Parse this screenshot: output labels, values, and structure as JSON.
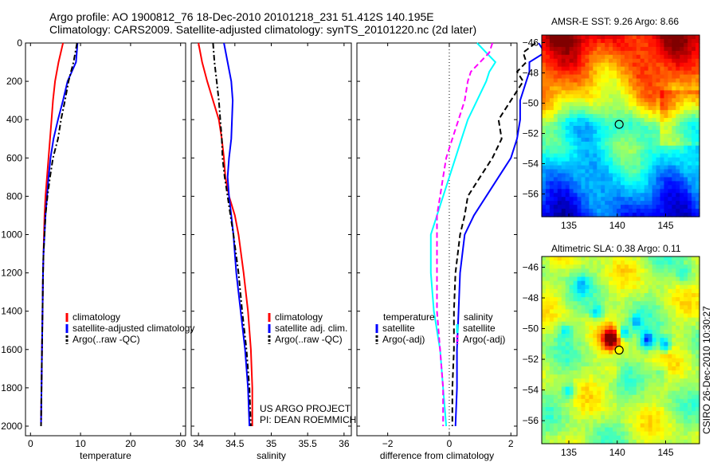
{
  "header": {
    "line1": "Argo profile: AO 1900812_76 18-Dec-2010 20101218_231 51.412S 140.195E",
    "line2": "Climatology: CARS2009. Satellite-adjusted climatology: synTS_20101220.nc (2d later)"
  },
  "credit": {
    "line1": "US ARGO PROJECT",
    "line2": "PI: DEAN ROEMMICH"
  },
  "timestamp": "CSIRO 26-Dec-2010 10:30:27",
  "colors": {
    "red": "#ff0000",
    "blue": "#0000ff",
    "black": "#000000",
    "cyan": "#00ffff",
    "magenta": "#ff00ff"
  },
  "chart_data": [
    {
      "type": "line",
      "xlabel": "temperature",
      "ylabel": "",
      "xlim": [
        -1,
        31
      ],
      "ylim": [
        2050,
        0
      ],
      "xticks": [
        0,
        10,
        20,
        30
      ],
      "yticks": [
        0,
        200,
        400,
        600,
        800,
        1000,
        1200,
        1400,
        1600,
        1800,
        2000
      ],
      "y": [
        0,
        100,
        200,
        300,
        400,
        500,
        600,
        700,
        800,
        900,
        1000,
        1100,
        1200,
        1400,
        1600,
        1800,
        2000
      ],
      "series": [
        {
          "name": "climatology",
          "color": "red",
          "style": "solid",
          "values": [
            6.5,
            5.6,
            4.9,
            4.5,
            4.2,
            3.9,
            3.6,
            3.3,
            3.0,
            2.8,
            2.7,
            2.6,
            2.5,
            2.4,
            2.3,
            2.2,
            2.1
          ]
        },
        {
          "name": "satellite-adjusted climatology",
          "color": "blue",
          "style": "solid",
          "values": [
            9.4,
            9.1,
            7.4,
            6.5,
            5.5,
            4.6,
            4.0,
            3.6,
            3.3,
            3.0,
            2.8,
            2.6,
            2.5,
            2.4,
            2.3,
            2.2,
            2.1
          ]
        },
        {
          "name": "Argo(..raw -QC)",
          "color": "black",
          "style": "dashdot",
          "values": [
            9.3,
            8.6,
            7.6,
            6.9,
            6.1,
            5.5,
            4.5,
            3.9,
            3.4,
            3.0,
            2.8,
            2.6,
            2.5,
            2.4,
            2.3,
            2.2,
            2.1
          ]
        }
      ],
      "legend": [
        "climatology",
        "satellite-adjusted climatology",
        "Argo(..raw -QC)"
      ]
    },
    {
      "type": "line",
      "xlabel": "salinity",
      "ylabel": "",
      "xlim": [
        33.9,
        36.1
      ],
      "ylim": [
        2050,
        0
      ],
      "xticks": [
        34,
        34.5,
        35,
        35.5,
        36
      ],
      "y": [
        0,
        100,
        200,
        300,
        400,
        500,
        600,
        700,
        800,
        900,
        1000,
        1200,
        1400,
        1600,
        1800,
        2000
      ],
      "series": [
        {
          "name": "climatology",
          "color": "red",
          "style": "solid",
          "values": [
            34.0,
            34.05,
            34.12,
            34.2,
            34.28,
            34.32,
            34.35,
            34.37,
            34.42,
            34.5,
            34.55,
            34.62,
            34.68,
            34.72,
            34.74,
            34.74
          ]
        },
        {
          "name": "satellite adj. clim.",
          "color": "blue",
          "style": "solid",
          "values": [
            34.35,
            34.4,
            34.45,
            34.47,
            34.46,
            34.45,
            34.42,
            34.4,
            34.42,
            34.45,
            34.48,
            34.52,
            34.58,
            34.64,
            34.68,
            34.7
          ]
        },
        {
          "name": "Argo(..raw -QC)",
          "color": "black",
          "style": "dashdot",
          "values": [
            34.2,
            34.22,
            34.25,
            34.28,
            34.3,
            34.32,
            34.33,
            34.36,
            34.4,
            34.44,
            34.48,
            34.55,
            34.6,
            34.66,
            34.7,
            34.72
          ]
        }
      ],
      "legend": [
        "climatology",
        "satellite adj. clim.",
        "Argo(..raw -QC)"
      ]
    },
    {
      "type": "line",
      "xlabel": "difference from climatology",
      "ylabel": "",
      "xlim": [
        -3,
        2.2
      ],
      "ylim": [
        2050,
        0
      ],
      "xticks": [
        -2,
        0,
        2
      ],
      "y": [
        0,
        50,
        100,
        150,
        200,
        300,
        400,
        500,
        600,
        700,
        800,
        900,
        1000,
        1200,
        1400,
        1600,
        1800,
        2000
      ],
      "series": [
        {
          "name": "temperature satellite",
          "color": "blue",
          "style": "solid",
          "values": [
            2.9,
            3.1,
            2.6,
            2.6,
            2.5,
            2.3,
            2.3,
            2.2,
            2.0,
            1.6,
            1.2,
            0.8,
            0.5,
            0.35,
            0.3,
            0.25,
            0.25,
            0.2
          ]
        },
        {
          "name": "temperature Argo(-adj)",
          "color": "black",
          "style": "dashed",
          "values": [
            2.8,
            2.4,
            2.5,
            2.2,
            2.4,
            2.0,
            1.6,
            1.7,
            1.4,
            1.0,
            0.6,
            0.5,
            0.35,
            0.2,
            0.15,
            0.15,
            0.1,
            0.1
          ]
        },
        {
          "name": "salinity satellite",
          "color": "cyan",
          "style": "solid",
          "values": [
            0.9,
            1.2,
            1.5,
            1.3,
            1.2,
            0.9,
            0.6,
            0.4,
            0.2,
            0.0,
            -0.2,
            -0.4,
            -0.6,
            -0.6,
            -0.5,
            -0.3,
            -0.2,
            -0.1
          ]
        },
        {
          "name": "salinity Argo(-adj)",
          "color": "magenta",
          "style": "dashed",
          "values": [
            1.4,
            1.3,
            1.0,
            0.7,
            0.6,
            0.5,
            0.3,
            0.1,
            -0.1,
            -0.2,
            -0.3,
            -0.4,
            -0.4,
            -0.4,
            -0.4,
            -0.3,
            -0.2,
            -0.2
          ]
        }
      ],
      "legend_temperature": {
        "title": "temperature",
        "items": [
          "satellite",
          "Argo(-adj)"
        ]
      },
      "legend_salinity": {
        "title": "salinity",
        "items": [
          "satellite",
          "Argo(-adj)"
        ]
      }
    },
    {
      "type": "heatmap",
      "title": "AMSR-E SST: 9.26 Argo: 8.66",
      "xlim": [
        132.2,
        148.5
      ],
      "ylim": [
        -57.5,
        -45.5
      ],
      "xticks": [
        135,
        140,
        145
      ],
      "yticks": [
        -46,
        -48,
        -50,
        -52,
        -54,
        -56
      ],
      "marker": {
        "lon": 140.2,
        "lat": -51.4
      }
    },
    {
      "type": "heatmap",
      "title": "Altimetric SLA: 0.38 Argo: 0.11",
      "xlim": [
        132.2,
        148.5
      ],
      "ylim": [
        -57.5,
        -45.3
      ],
      "xticks": [
        135,
        140,
        145
      ],
      "yticks": [
        -46,
        -48,
        -50,
        -52,
        -54,
        -56
      ],
      "marker": {
        "lon": 140.2,
        "lat": -51.4
      }
    }
  ]
}
